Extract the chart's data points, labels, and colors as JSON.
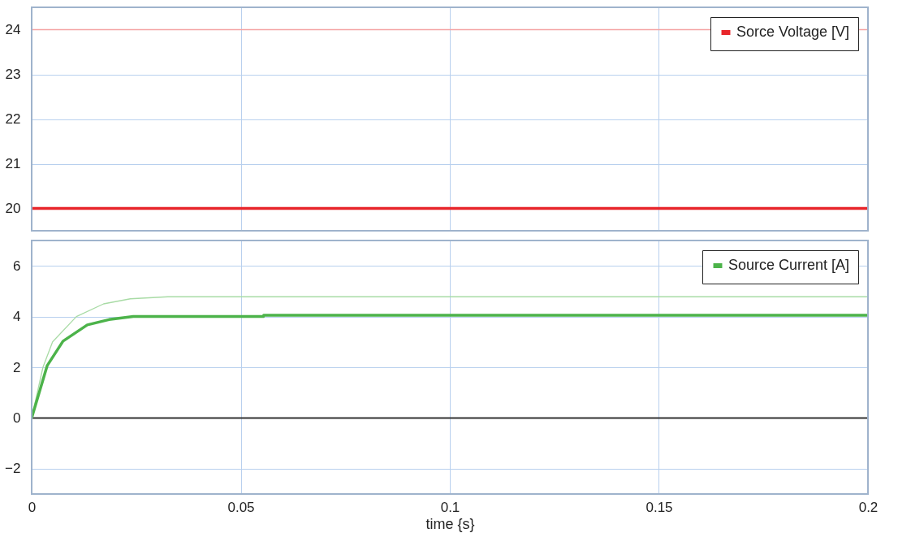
{
  "chart_data": [
    {
      "type": "line",
      "xlim": [
        0,
        0.2
      ],
      "xticks": [
        0,
        0.05,
        0.1,
        0.15,
        0.2
      ],
      "ylim": [
        19.5,
        24.5
      ],
      "yticks": [
        20,
        21,
        22,
        23,
        24
      ],
      "grid": true,
      "legend": "top right",
      "tick_labels": "y",
      "series": [
        {
          "color": "#f4a3a3",
          "x": [
            0,
            0.2
          ],
          "values": [
            24,
            24
          ]
        },
        {
          "name": "Sorce Voltage [V]",
          "color": "#e8262b",
          "x": [
            0,
            0.2
          ],
          "values": [
            20,
            20
          ]
        }
      ]
    },
    {
      "type": "line",
      "xlim": [
        0,
        0.2
      ],
      "xticks": [
        0,
        0.05,
        0.1,
        0.15,
        0.2
      ],
      "ylim": [
        -3,
        7
      ],
      "yticks": [
        -2,
        0,
        2,
        4,
        6
      ],
      "grid": true,
      "legend": "top right",
      "xlabel": "time {s}",
      "ref_lines": [
        {
          "axis": "y",
          "value": 0,
          "color": "#333333"
        }
      ],
      "series": [
        {
          "color": "#a8dba5",
          "x": [
            0,
            0.0027,
            0.005,
            0.0107,
            0.0172,
            0.0236,
            0.0326,
            0.2
          ],
          "values": [
            0,
            2,
            3,
            4,
            4.5,
            4.7,
            4.78,
            4.78
          ]
        },
        {
          "name": "Source Current [A]",
          "color": "#4cb34a",
          "x": [
            0,
            0.0037,
            0.0075,
            0.0133,
            0.0185,
            0.0243,
            0.0554,
            0.0555,
            0.2
          ],
          "values": [
            0,
            2.06,
            3.03,
            3.67,
            3.88,
            4.0,
            4.0,
            4.05,
            4.05
          ]
        }
      ]
    }
  ]
}
